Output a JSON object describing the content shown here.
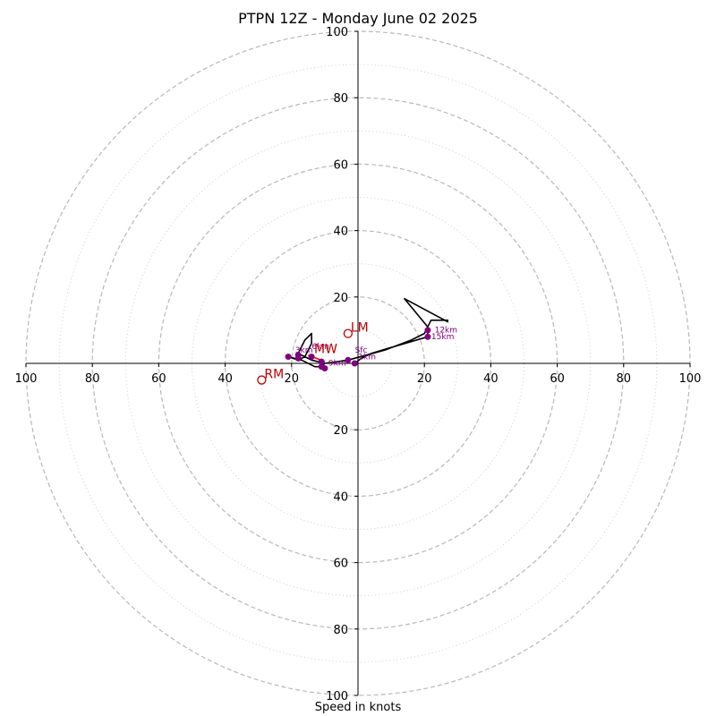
{
  "chart_data": {
    "type": "hodograph",
    "title": "PTPN 12Z - Monday June 02 2025",
    "xlabel": "Speed in knots",
    "ylabel": "",
    "xlim": [
      -100,
      100
    ],
    "ylim": [
      -100,
      100
    ],
    "grid": true,
    "major_rings": [
      20,
      40,
      60,
      80,
      100
    ],
    "minor_rings": [
      10,
      30,
      50,
      70,
      90
    ],
    "x_ticks": [
      {
        "v": -100,
        "label": "100"
      },
      {
        "v": -80,
        "label": "80"
      },
      {
        "v": -60,
        "label": "60"
      },
      {
        "v": -40,
        "label": "40"
      },
      {
        "v": -20,
        "label": "20"
      },
      {
        "v": 20,
        "label": "20"
      },
      {
        "v": 40,
        "label": "40"
      },
      {
        "v": 60,
        "label": "60"
      },
      {
        "v": 80,
        "label": "80"
      },
      {
        "v": 100,
        "label": "100"
      }
    ],
    "y_ticks": [
      {
        "v": 100,
        "label": "100"
      },
      {
        "v": 80,
        "label": "80"
      },
      {
        "v": 60,
        "label": "60"
      },
      {
        "v": 40,
        "label": "40"
      },
      {
        "v": 20,
        "label": "20"
      },
      {
        "v": -20,
        "label": "20"
      },
      {
        "v": -40,
        "label": "40"
      },
      {
        "v": -60,
        "label": "60"
      },
      {
        "v": -80,
        "label": "80"
      },
      {
        "v": -100,
        "label": "100"
      }
    ],
    "series": [
      {
        "color": "#000000",
        "points": [
          [
            -1,
            0
          ],
          [
            1,
            1.5
          ],
          [
            4,
            3
          ],
          [
            9,
            4.5
          ],
          [
            21,
            8
          ],
          [
            21,
            11
          ],
          [
            22,
            13
          ],
          [
            27,
            13
          ],
          [
            27,
            12.5
          ],
          [
            14,
            19.5
          ],
          [
            21,
            11
          ],
          [
            20,
            9
          ],
          [
            16,
            7
          ],
          [
            8,
            4
          ],
          [
            -3,
            1
          ],
          [
            -10,
            0
          ],
          [
            -14,
            1
          ],
          [
            -16,
            2
          ],
          [
            -18,
            3
          ],
          [
            -17,
            5
          ],
          [
            -16,
            7
          ],
          [
            -15,
            8
          ],
          [
            -14,
            9
          ],
          [
            -14,
            6
          ],
          [
            -15,
            4
          ],
          [
            -16,
            2
          ],
          [
            -18,
            1
          ],
          [
            -21,
            2
          ],
          [
            -17,
            1
          ],
          [
            -13,
            -1
          ],
          [
            -11,
            -1
          ],
          [
            -10,
            0
          ]
        ]
      },
      {
        "color": "#ff0000",
        "points": [
          [
            -15,
            2.5
          ],
          [
            -10,
            0.5
          ]
        ]
      }
    ],
    "height_markers": [
      {
        "label": "Sfc",
        "x": -1,
        "y": 0,
        "lx": -2,
        "ly": 3
      },
      {
        "label": "1km",
        "x": -3,
        "y": 1,
        "lx": -1,
        "ly": 1
      },
      {
        "label": "3km",
        "x": -21,
        "y": 2,
        "lx": -20,
        "ly": 3
      },
      {
        "label": "",
        "x": -18,
        "y": 1.5,
        "lx": null,
        "ly": null
      },
      {
        "label": "6km",
        "x": -18,
        "y": 2.5,
        "lx": -15,
        "ly": 4
      },
      {
        "label": "",
        "x": -14,
        "y": 2,
        "lx": null,
        "ly": null
      },
      {
        "label": "",
        "x": -11,
        "y": -1,
        "lx": null,
        "ly": null
      },
      {
        "label": "9km",
        "x": -10,
        "y": -1.5,
        "lx": -10,
        "ly": -1
      },
      {
        "label": "",
        "x": -11,
        "y": 0.5,
        "lx": null,
        "ly": null
      },
      {
        "label": "12km",
        "x": 21,
        "y": 10,
        "lx": 22,
        "ly": 9
      },
      {
        "label": "15km",
        "x": 21,
        "y": 8,
        "lx": 21,
        "ly": 7
      }
    ],
    "storm_motion": [
      {
        "label": "LM",
        "x": -3,
        "y": 9
      },
      {
        "label": "RM",
        "x": -29,
        "y": -5
      },
      {
        "label": "MW",
        "x": -14,
        "y": 2.5
      }
    ]
  }
}
